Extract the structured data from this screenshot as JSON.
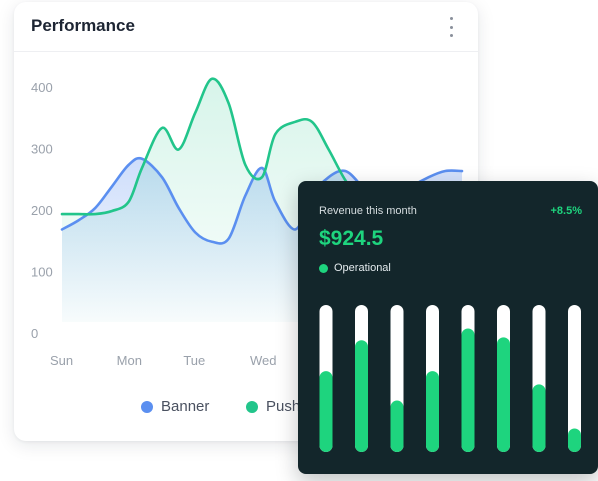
{
  "performance": {
    "title": "Performance",
    "menu_icon": "more-vertical-icon"
  },
  "chart_data": {
    "type": "area",
    "y_ticks": [
      "400",
      "300",
      "200",
      "100",
      "0"
    ],
    "ylim": [
      0,
      400
    ],
    "x_ticks": [
      "Sun",
      "Mon",
      "Tue",
      "Wed"
    ],
    "x": [
      0,
      0.25,
      0.5,
      0.75,
      1,
      1.2,
      1.5,
      1.75,
      2,
      2.25,
      2.5,
      2.75,
      3,
      3.2,
      3.5,
      3.75,
      4,
      4.25,
      4.5,
      4.75,
      5,
      5.25,
      5.5,
      5.75,
      6
    ],
    "series": [
      {
        "name": "Banner",
        "color": "#5b8ff0",
        "values": [
          170,
          185,
          205,
          240,
          275,
          285,
          255,
          205,
          165,
          150,
          155,
          225,
          270,
          215,
          170,
          225,
          255,
          265,
          240,
          210,
          220,
          240,
          255,
          265,
          265
        ]
      },
      {
        "name": "Push",
        "color": "#22c58b",
        "values": [
          195,
          195,
          195,
          200,
          215,
          270,
          335,
          300,
          360,
          415,
          375,
          275,
          255,
          325,
          345,
          345,
          300,
          250,
          215,
          200,
          190,
          180,
          175,
          170,
          170
        ]
      }
    ],
    "grid": false,
    "legend": "bottom-center"
  },
  "legend": [
    {
      "label": "Banner",
      "color": "#5b8ff0"
    },
    {
      "label": "Push",
      "color": "#22c58b"
    }
  ],
  "revenue": {
    "label": "Revenue this month",
    "change": "+8.5%",
    "value": "$924.5",
    "status": "Operational",
    "accent": "#1ed47e",
    "bars": [
      0.55,
      0.76,
      0.35,
      0.55,
      0.84,
      0.78,
      0.46,
      0.16
    ]
  }
}
